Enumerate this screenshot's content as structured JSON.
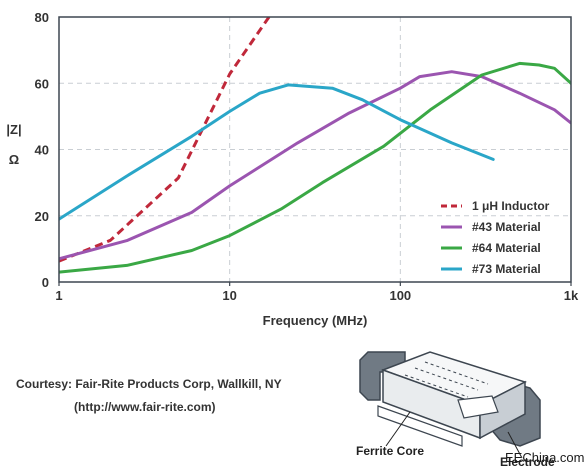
{
  "chart_data": {
    "type": "line",
    "xscale": "log",
    "xlabel": "Frequency (MHz)",
    "ylabel_top": "|Z|",
    "ylabel_bottom": "Ω",
    "xlim": [
      1,
      1000
    ],
    "ylim": [
      0,
      80
    ],
    "xticks": [
      {
        "value": 1,
        "label": "1"
      },
      {
        "value": 10,
        "label": "10"
      },
      {
        "value": 100,
        "label": "100"
      },
      {
        "value": 1000,
        "label": "1k"
      }
    ],
    "yticks": [
      0,
      20,
      40,
      60,
      80
    ],
    "grid": true,
    "legend_position": "bottom-right",
    "series": [
      {
        "name": "1 μH Inductor",
        "color": "#c0283a",
        "dash": true,
        "x": [
          1,
          2,
          5,
          10,
          17
        ],
        "y": [
          6.3,
          12.6,
          31.4,
          62.8,
          80
        ]
      },
      {
        "name": "#43 Material",
        "color": "#9b55b0",
        "dash": false,
        "x": [
          1,
          2.5,
          6,
          10,
          25,
          50,
          100,
          130,
          200,
          300,
          500,
          800,
          1000
        ],
        "y": [
          7,
          12.5,
          21,
          29,
          42,
          51,
          58.5,
          62,
          63.5,
          62,
          57,
          52,
          48
        ]
      },
      {
        "name": "#64 Material",
        "color": "#3aa845",
        "dash": false,
        "x": [
          1,
          2.5,
          6,
          10,
          20,
          35,
          80,
          150,
          300,
          500,
          650,
          800,
          1000
        ],
        "y": [
          3,
          5,
          9.5,
          14,
          22,
          30,
          41,
          52,
          62.5,
          66,
          65.5,
          64.5,
          60
        ]
      },
      {
        "name": "#73 Material",
        "color": "#2aa6c8",
        "dash": false,
        "x": [
          1,
          2.5,
          6,
          10,
          15,
          22,
          40,
          60,
          100,
          200,
          350
        ],
        "y": [
          19,
          32,
          44,
          51.5,
          57,
          59.5,
          58.5,
          55,
          49,
          42,
          37
        ]
      }
    ]
  },
  "courtesy": {
    "line1": "Courtesy: Fair-Rite Products Corp, Wallkill, NY",
    "line2": "(http://www.fair-rite.com)"
  },
  "illustration": {
    "label_ferrite": "Ferrite Core",
    "label_electrode": "Electrode"
  },
  "watermark": "EEChina.com"
}
